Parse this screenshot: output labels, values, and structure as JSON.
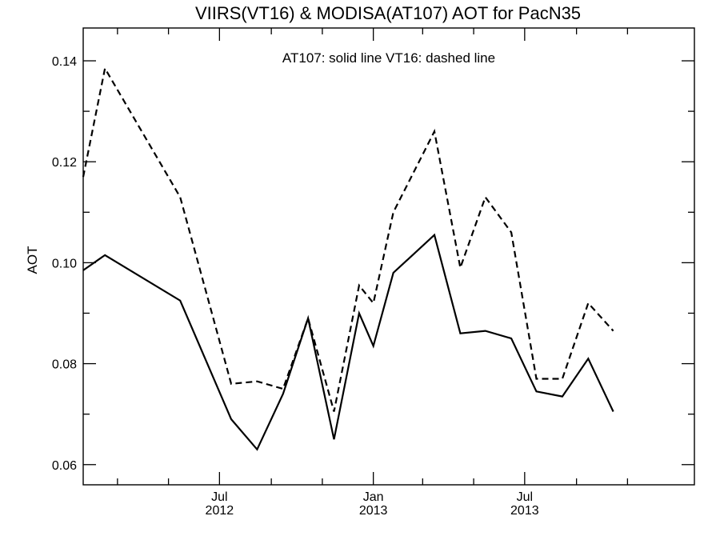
{
  "chart_data": {
    "type": "line",
    "title": "VIIRS(VT16) & MODISA(AT107)  AOT for PacN35",
    "xlabel": "",
    "ylabel": "AOT",
    "annotation": "AT107: solid line   VT16: dashed line",
    "xlim": [
      "2012-01-20",
      "2014-01-20"
    ],
    "ylim": [
      0.056,
      0.1465
    ],
    "y_ticks": [
      0.06,
      0.08,
      0.1,
      0.12,
      0.14
    ],
    "y_tick_labels": [
      "0.06",
      "0.08",
      "0.10",
      "0.12",
      "0.14"
    ],
    "x_major_ticks": [
      {
        "date": "2012-07-01",
        "month": "Jul",
        "year": "2012"
      },
      {
        "date": "2013-01-01",
        "month": "Jan",
        "year": "2013"
      },
      {
        "date": "2013-07-01",
        "month": "Jul",
        "year": "2013"
      }
    ],
    "x_minor_ticks": [
      "2012-03-01",
      "2012-05-01",
      "2012-09-01",
      "2012-11-01",
      "2013-03-01",
      "2013-05-01",
      "2013-09-01",
      "2013-11-01"
    ],
    "series": [
      {
        "name": "AT107",
        "style": "solid",
        "color": "#000000",
        "points": [
          {
            "x": "2012-01-20",
            "y": 0.0985
          },
          {
            "x": "2012-02-15",
            "y": 0.1015
          },
          {
            "x": "2012-05-15",
            "y": 0.0925
          },
          {
            "x": "2012-07-15",
            "y": 0.069
          },
          {
            "x": "2012-08-15",
            "y": 0.063
          },
          {
            "x": "2012-09-15",
            "y": 0.074
          },
          {
            "x": "2012-10-15",
            "y": 0.089
          },
          {
            "x": "2012-11-15",
            "y": 0.065
          },
          {
            "x": "2012-12-15",
            "y": 0.09
          },
          {
            "x": "2013-01-01",
            "y": 0.0835
          },
          {
            "x": "2013-01-25",
            "y": 0.098
          },
          {
            "x": "2013-03-15",
            "y": 0.1055
          },
          {
            "x": "2013-04-15",
            "y": 0.086
          },
          {
            "x": "2013-05-15",
            "y": 0.0865
          },
          {
            "x": "2013-06-15",
            "y": 0.085
          },
          {
            "x": "2013-07-15",
            "y": 0.0745
          },
          {
            "x": "2013-08-15",
            "y": 0.0735
          },
          {
            "x": "2013-09-15",
            "y": 0.081
          },
          {
            "x": "2013-10-15",
            "y": 0.0705
          }
        ]
      },
      {
        "name": "VT16",
        "style": "dashed",
        "color": "#000000",
        "points": [
          {
            "x": "2012-01-20",
            "y": 0.117
          },
          {
            "x": "2012-02-15",
            "y": 0.1385
          },
          {
            "x": "2012-05-15",
            "y": 0.113
          },
          {
            "x": "2012-07-15",
            "y": 0.076
          },
          {
            "x": "2012-08-15",
            "y": 0.0765
          },
          {
            "x": "2012-09-15",
            "y": 0.075
          },
          {
            "x": "2012-10-15",
            "y": 0.089
          },
          {
            "x": "2012-11-15",
            "y": 0.0705
          },
          {
            "x": "2012-12-15",
            "y": 0.0955
          },
          {
            "x": "2013-01-01",
            "y": 0.092
          },
          {
            "x": "2013-01-25",
            "y": 0.11
          },
          {
            "x": "2013-03-15",
            "y": 0.126
          },
          {
            "x": "2013-04-15",
            "y": 0.099
          },
          {
            "x": "2013-05-15",
            "y": 0.113
          },
          {
            "x": "2013-06-15",
            "y": 0.106
          },
          {
            "x": "2013-07-15",
            "y": 0.077
          },
          {
            "x": "2013-08-15",
            "y": 0.077
          },
          {
            "x": "2013-09-15",
            "y": 0.092
          },
          {
            "x": "2013-10-15",
            "y": 0.0865
          }
        ]
      }
    ]
  }
}
